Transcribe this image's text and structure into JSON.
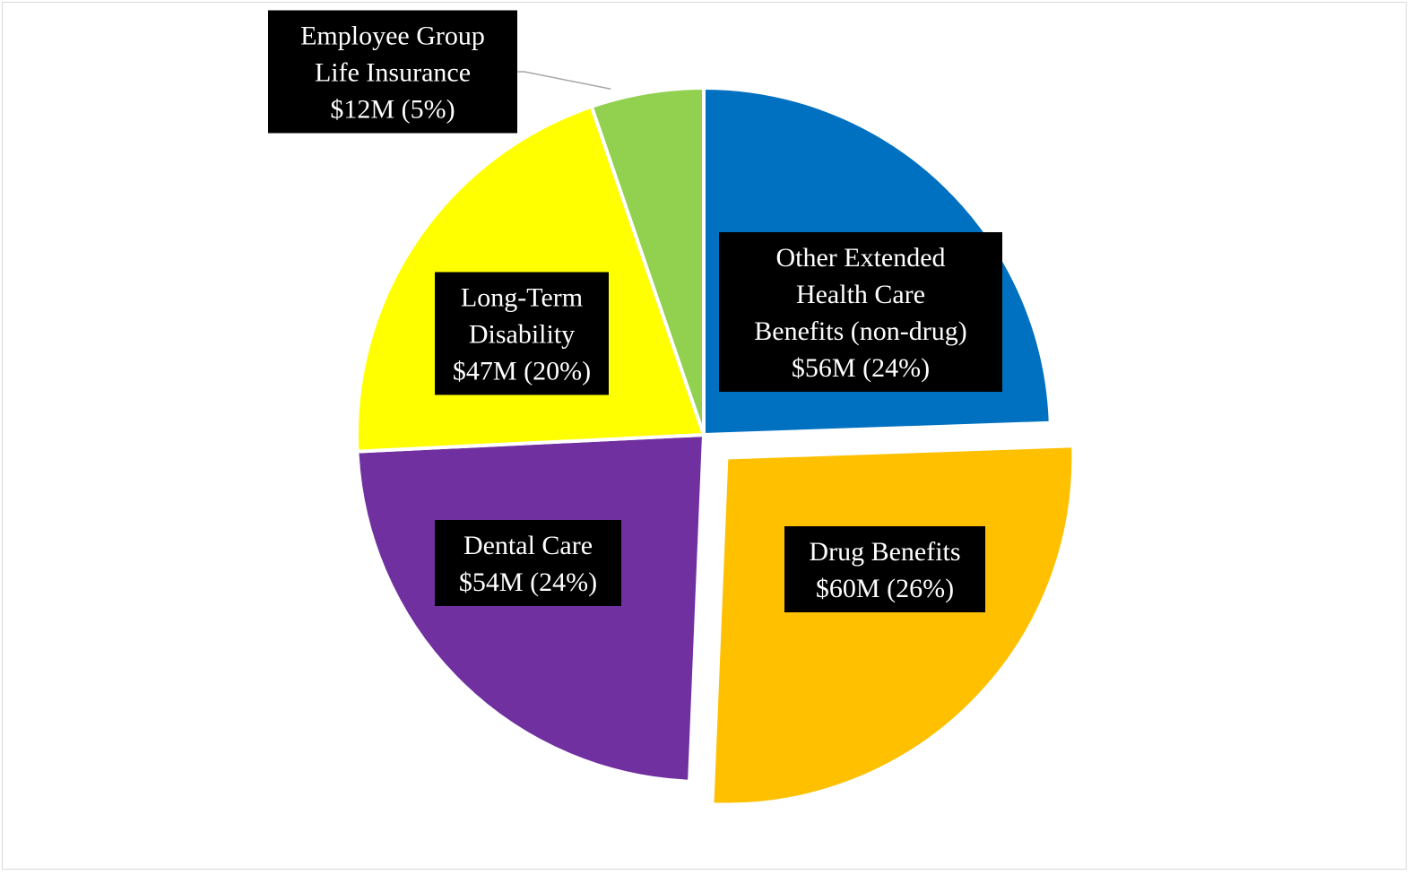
{
  "chart_data": {
    "type": "pie",
    "title": "",
    "unit": "$M",
    "slices": [
      {
        "name": "Other Extended Health Care Benefits (non-drug)",
        "value": 56,
        "percent": 24,
        "color": "#0070C0",
        "exploded": false,
        "label_lines": [
          "Other Extended",
          "Health Care",
          "Benefits (non-drug)",
          "$56M (24%)"
        ]
      },
      {
        "name": "Drug Benefits",
        "value": 60,
        "percent": 26,
        "color": "#FFC000",
        "exploded": true,
        "label_lines": [
          "Drug Benefits",
          "$60M (26%)"
        ]
      },
      {
        "name": "Dental Care",
        "value": 54,
        "percent": 24,
        "color": "#7030A0",
        "exploded": false,
        "label_lines": [
          "Dental Care",
          "$54M (24%)"
        ]
      },
      {
        "name": "Long-Term Disability",
        "value": 47,
        "percent": 20,
        "color": "#FFFF00",
        "exploded": false,
        "label_lines": [
          "Long-Term",
          "Disability",
          "$47M (20%)"
        ]
      },
      {
        "name": "Employee Group Life Insurance",
        "value": 12,
        "percent": 5,
        "color": "#92D050",
        "exploded": false,
        "label_lines": [
          "Employee Group",
          "Life Insurance",
          "$12M (5%)"
        ]
      }
    ],
    "legend": "none",
    "data_labels": "boxed, black background, white text"
  }
}
